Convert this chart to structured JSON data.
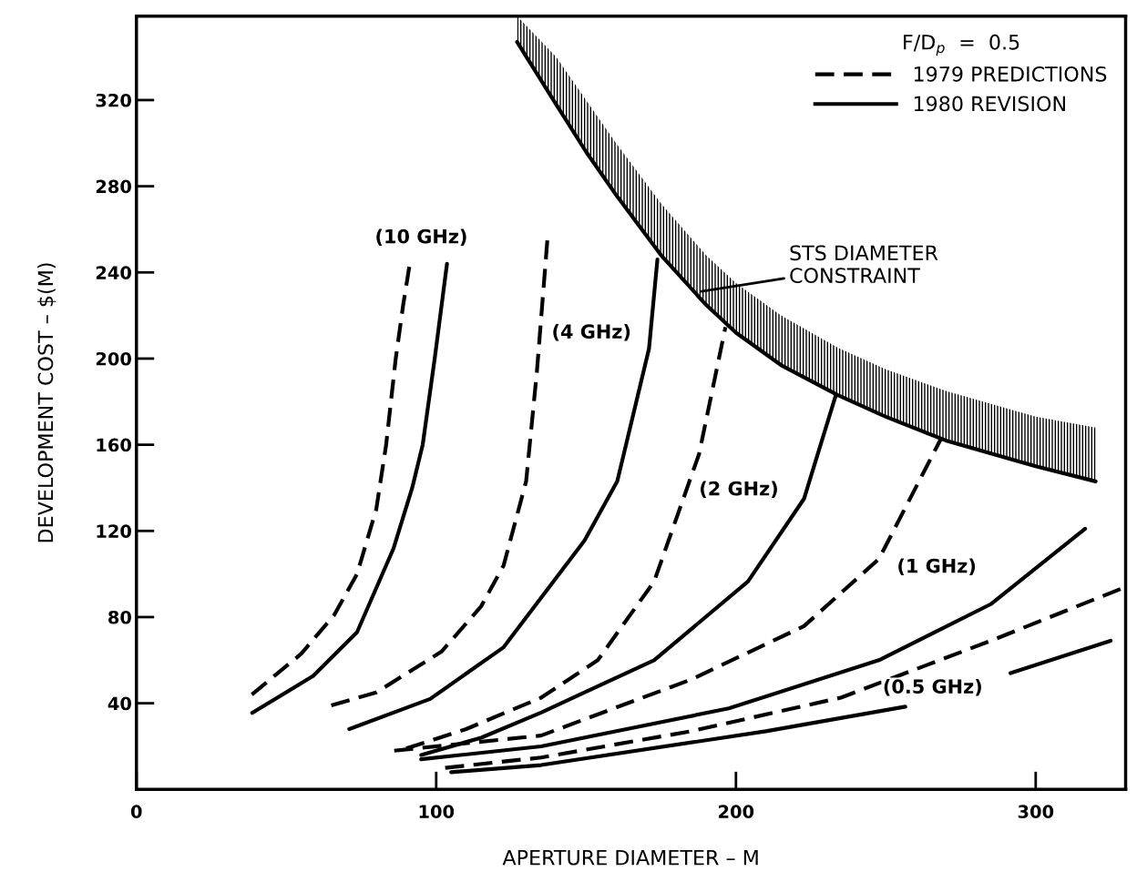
{
  "chart_data": {
    "type": "line",
    "xlabel": "APERTURE DIAMETER – M",
    "ylabel": "DEVELOPMENT COST – $(M)",
    "legend_title": "F/D$_{p}$  =  0.5",
    "legend": "top right",
    "grid": false,
    "xlim": [
      0,
      330
    ],
    "ylim": [
      0,
      359
    ],
    "xticks": [
      0,
      100,
      200,
      300
    ],
    "yticks": [
      40,
      80,
      120,
      160,
      200,
      240,
      280,
      320
    ],
    "series": [
      {
        "name": "1979 PREDICTIONS",
        "color": "#000000",
        "line_style": "dashed",
        "x": [
          38.5,
          55,
          66,
          73.6,
          80,
          83.3,
          86.5,
          89,
          91.3
        ],
        "values": [
          44,
          63,
          81,
          100,
          130,
          160,
          200,
          225,
          245
        ]
      },
      {
        "name": "1980 REVISION",
        "color": "#000000",
        "line_style": "solid",
        "x": [
          38.6,
          58.9,
          73.6,
          85.8,
          92,
          95.5,
          99.5,
          103.6
        ],
        "values": [
          35.5,
          52.6,
          73,
          112,
          140,
          160,
          200,
          244
        ]
      },
      {
        "color": "#000000",
        "line_style": "dashed",
        "x": [
          65,
          80,
          101.8,
          115,
          122.5,
          130,
          133.6,
          137.2
        ],
        "values": [
          39,
          45,
          64,
          85,
          104,
          143,
          194,
          257
        ]
      },
      {
        "color": "#000000",
        "line_style": "solid",
        "x": [
          71,
          98,
          122.5,
          149.5,
          160.4,
          171,
          173.8
        ],
        "values": [
          28,
          42,
          66,
          115.6,
          143,
          204.6,
          246
        ]
      },
      {
        "color": "#000000",
        "line_style": "dashed",
        "x": [
          90,
          110,
          135,
          153.9,
          172.7,
          187.7,
          196.5
        ],
        "values": [
          19,
          28,
          42.6,
          60,
          96.5,
          155.7,
          214.6
        ]
      },
      {
        "color": "#000000",
        "line_style": "solid",
        "x": [
          95,
          115,
          135,
          172.7,
          204,
          222.7,
          233.3
        ],
        "values": [
          16,
          24,
          35.7,
          60,
          96.5,
          134.9,
          182.9
        ]
      },
      {
        "color": "#000000",
        "line_style": "dashed",
        "x": [
          86,
          135,
          185,
          222.7,
          247.7,
          268.4
        ],
        "values": [
          18,
          25,
          51,
          75.8,
          107,
          162.8
        ]
      },
      {
        "color": "#000000",
        "line_style": "solid",
        "x": [
          95,
          135,
          197.6,
          247.7,
          285,
          316.5
        ],
        "values": [
          14,
          20,
          37.6,
          60,
          86,
          121
        ]
      },
      {
        "color": "#000000",
        "line_style": "dashed",
        "x": [
          103,
          135,
          185,
          235,
          285,
          330
        ],
        "values": [
          10,
          14.8,
          27,
          42.6,
          69,
          94
        ]
      },
      {
        "color": "#000000",
        "line_style": "solid",
        "x": [
          105,
          135,
          210,
          256.5,
          275,
          291.6,
          325
        ],
        "values": [
          8,
          11.3,
          27,
          38.4,
          null,
          54,
          69
        ]
      },
      {
        "color": "#000000",
        "line_style": "solid",
        "x": [
          127,
          140,
          150,
          160,
          175,
          190,
          200,
          215,
          234,
          250,
          270,
          300,
          320
        ],
        "values": [
          347,
          318,
          296,
          276,
          248,
          225,
          212,
          197,
          183,
          173,
          162,
          150,
          143
        ],
        "lower": [
          347,
          318,
          296,
          276,
          248,
          225,
          212,
          197,
          183,
          173,
          162,
          150,
          143
        ],
        "upper": [
          359,
          340,
          320,
          300,
          272,
          248,
          235,
          220,
          205,
          195,
          185,
          173,
          168
        ]
      }
    ],
    "annotations": [
      "(10 GHz)",
      "(4 GHz)",
      "(2 GHz)",
      "(1 GHz)",
      "(0.5 GHz)",
      {
        "text": "STS DIAMETER\nCONSTRAINT",
        "x": 187.7,
        "y": 231
      }
    ]
  }
}
